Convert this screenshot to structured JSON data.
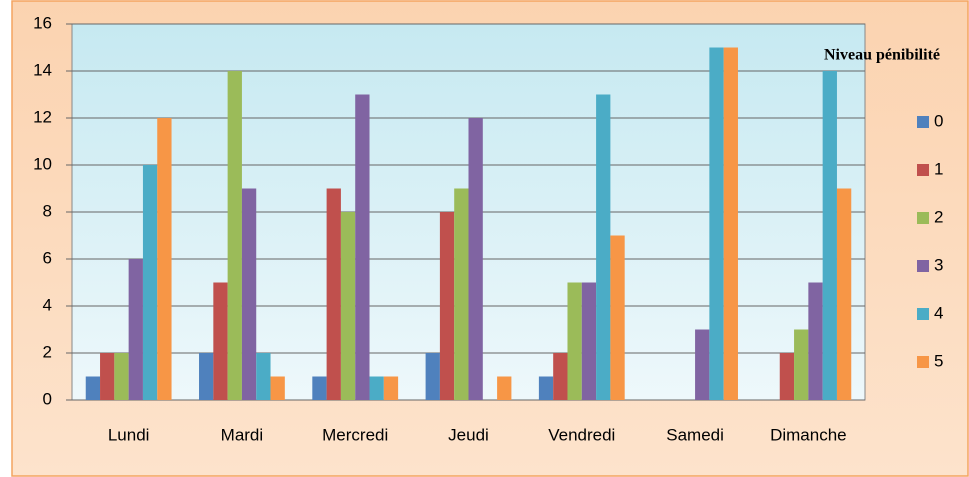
{
  "chart_data": {
    "type": "bar",
    "categories": [
      "Lundi",
      "Mardi",
      "Mercredi",
      "Jeudi",
      "Vendredi",
      "Samedi",
      "Dimanche"
    ],
    "legend_title": "Niveau pénibilité",
    "series": [
      {
        "name": "0",
        "color": "#4f81bd",
        "values": [
          1,
          2,
          1,
          2,
          1,
          0,
          0
        ]
      },
      {
        "name": "1",
        "color": "#c0504d",
        "values": [
          2,
          5,
          9,
          8,
          2,
          0,
          2
        ]
      },
      {
        "name": "2",
        "color": "#9bbb59",
        "values": [
          2,
          14,
          8,
          9,
          5,
          0,
          3
        ]
      },
      {
        "name": "3",
        "color": "#8064a2",
        "values": [
          6,
          9,
          13,
          12,
          5,
          3,
          5
        ]
      },
      {
        "name": "4",
        "color": "#4bacc6",
        "values": [
          10,
          2,
          1,
          0,
          13,
          15,
          14
        ]
      },
      {
        "name": "5",
        "color": "#f79646",
        "values": [
          12,
          1,
          1,
          1,
          7,
          15,
          9
        ]
      }
    ],
    "ylim": [
      0,
      16
    ],
    "yticks": [
      0,
      2,
      4,
      6,
      8,
      10,
      12,
      14,
      16
    ],
    "grid": true,
    "legend": "right"
  }
}
